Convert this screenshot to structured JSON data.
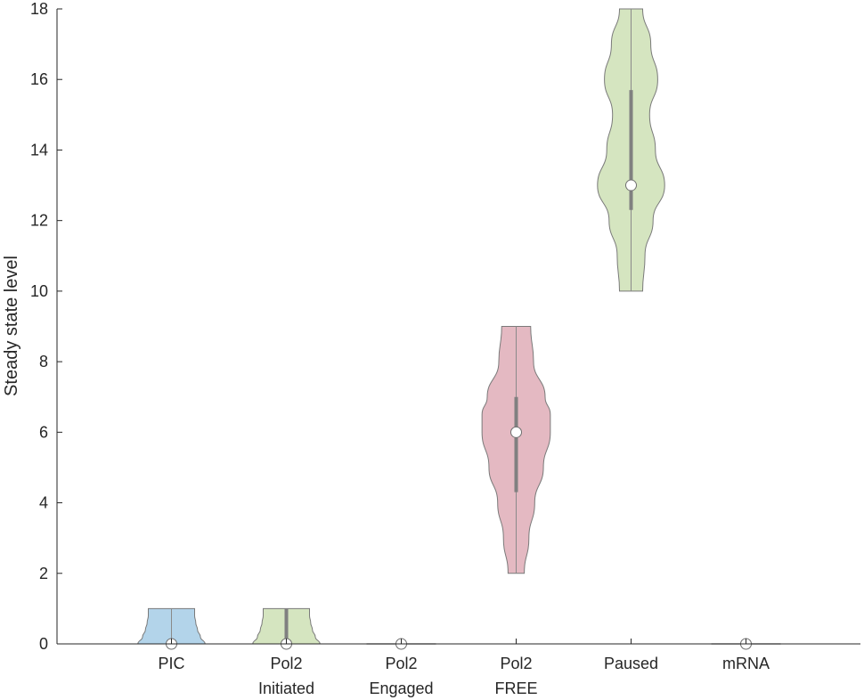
{
  "chart_data": {
    "type": "violin",
    "ylabel": "Steady state level",
    "ylim": [
      0,
      18
    ],
    "yticks": [
      0,
      2,
      4,
      6,
      8,
      10,
      12,
      14,
      16,
      18
    ],
    "grid": false,
    "categories": [
      {
        "label_lines": [
          "PIC"
        ],
        "color": "#b3d4ea",
        "min": 0,
        "max": 1,
        "median": 0,
        "q1": 0,
        "q3": 0,
        "profile": [
          [
            0,
            0.58
          ],
          [
            0.2,
            0.5
          ],
          [
            0.4,
            0.45
          ],
          [
            0.6,
            0.42
          ],
          [
            0.8,
            0.4
          ],
          [
            1,
            0.4
          ]
        ]
      },
      {
        "label_lines": [
          "Pol2",
          "Initiated"
        ],
        "color": "#d5e5c0",
        "min": 0,
        "max": 1,
        "median": 0,
        "q1": 0,
        "q3": 1,
        "profile": [
          [
            0,
            0.58
          ],
          [
            0.2,
            0.5
          ],
          [
            0.4,
            0.45
          ],
          [
            0.6,
            0.42
          ],
          [
            0.8,
            0.4
          ],
          [
            1,
            0.4
          ]
        ]
      },
      {
        "label_lines": [
          "Pol2",
          "Engaged"
        ],
        "color": "#d5e5c0",
        "min": 0,
        "max": 0,
        "median": 0,
        "q1": 0,
        "q3": 0,
        "profile": [
          [
            0,
            0.6
          ]
        ]
      },
      {
        "label_lines": [
          "Pol2",
          "FREE"
        ],
        "color": "#e4b9c2",
        "min": 2,
        "max": 9,
        "median": 6,
        "q1": 4.3,
        "q3": 7,
        "profile": [
          [
            2,
            0.14
          ],
          [
            3,
            0.22
          ],
          [
            4,
            0.32
          ],
          [
            5,
            0.47
          ],
          [
            6,
            0.59
          ],
          [
            6.5,
            0.59
          ],
          [
            7,
            0.5
          ],
          [
            8,
            0.3
          ],
          [
            9,
            0.25
          ]
        ]
      },
      {
        "label_lines": [
          "Paused"
        ],
        "color": "#d5e5c0",
        "min": 10,
        "max": 18,
        "median": 13,
        "q1": 12.3,
        "q3": 15.7,
        "profile": [
          [
            10,
            0.2
          ],
          [
            11,
            0.24
          ],
          [
            12,
            0.38
          ],
          [
            13,
            0.58
          ],
          [
            14,
            0.42
          ],
          [
            15,
            0.32
          ],
          [
            16,
            0.46
          ],
          [
            17,
            0.34
          ],
          [
            18,
            0.2
          ]
        ]
      },
      {
        "label_lines": [
          "mRNA"
        ],
        "color": "#d5e5c0",
        "min": 0,
        "max": 0,
        "median": 0,
        "q1": 0,
        "q3": 0,
        "profile": [
          [
            0,
            0.6
          ]
        ]
      }
    ]
  }
}
